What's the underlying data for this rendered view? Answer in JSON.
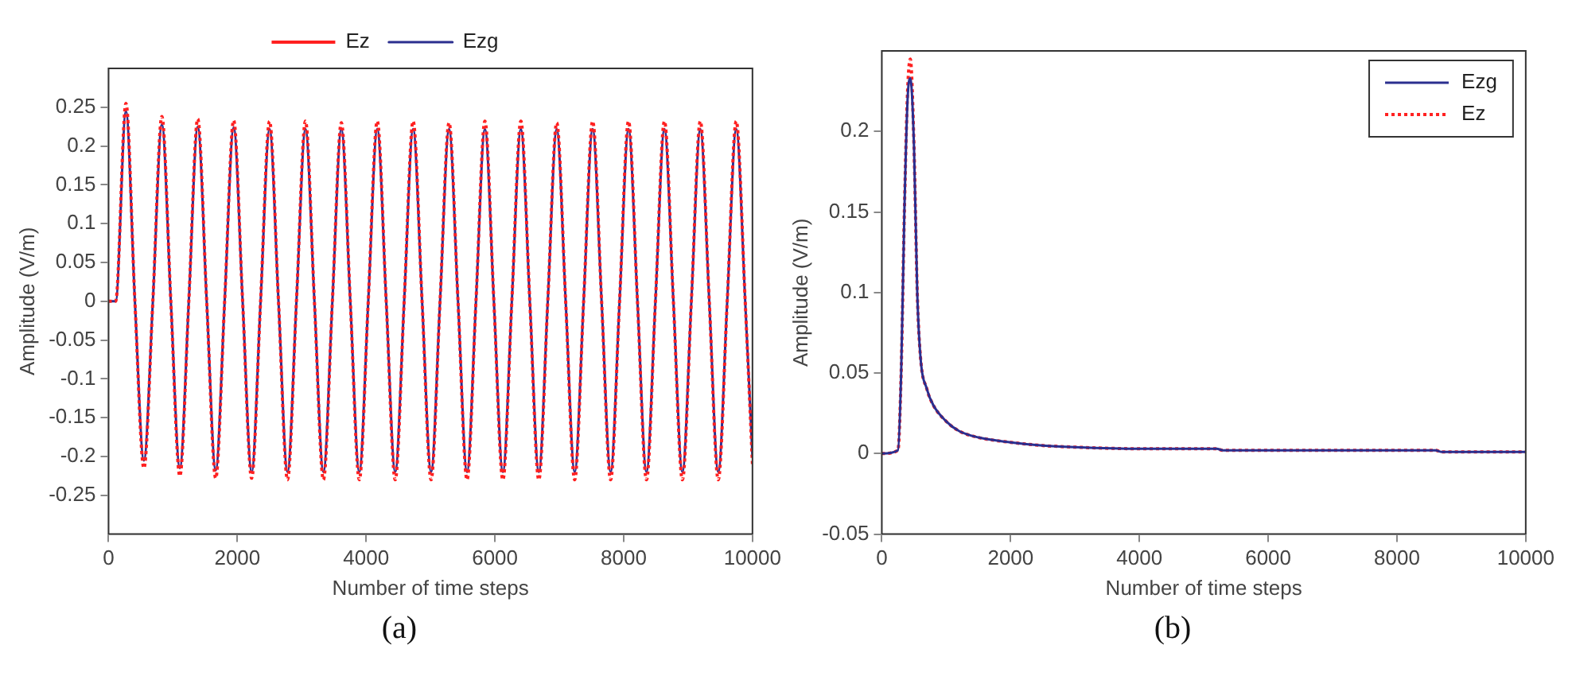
{
  "chart_data": [
    {
      "type": "line",
      "title": "(a)",
      "xlabel": "Number of time steps",
      "ylabel": "Amplitude (V/m)",
      "legend": "top",
      "marker": "none",
      "grid": false,
      "x": [
        0,
        110,
        270,
        409,
        549,
        688,
        828,
        967,
        1107,
        1246,
        1385,
        1524,
        1664,
        1803,
        1943,
        2082,
        2222,
        2361,
        2500,
        2639,
        2779,
        2918,
        3058,
        3197,
        3337,
        3476,
        3615,
        3754,
        3894,
        4033,
        4173,
        4312,
        4452,
        4591,
        4730,
        4869,
        5009,
        5148,
        5288,
        5427,
        5567,
        5706,
        5845,
        5984,
        6124,
        6263,
        6403,
        6542,
        6682,
        6821,
        6960,
        7099,
        7239,
        7378,
        7518,
        7657,
        7797,
        7936,
        8075,
        8214,
        8354,
        8493,
        8633,
        8772,
        8912,
        9051,
        9190,
        9329,
        9469,
        9608,
        9748,
        9887,
        10000
      ],
      "xlim": [
        0,
        10000
      ],
      "xticks": [
        0,
        2000,
        4000,
        6000,
        8000,
        10000
      ],
      "ylim": [
        -0.3,
        0.3
      ],
      "yticks": [
        -0.25,
        -0.2,
        -0.15,
        -0.1,
        -0.05,
        0,
        0.05,
        0.1,
        0.15,
        0.2,
        0.25
      ],
      "series": [
        {
          "name": "Ez",
          "color": "#ff2020",
          "line_style": "dotted",
          "values": [
            0,
            0,
            0.255,
            0,
            -0.215,
            0,
            0.238,
            0,
            -0.225,
            0,
            0.235,
            0,
            -0.228,
            0,
            0.233,
            0,
            -0.228,
            0,
            0.232,
            0,
            -0.23,
            0,
            0.232,
            0,
            -0.23,
            0,
            0.23,
            0,
            -0.23,
            0,
            0.232,
            0,
            -0.23,
            0,
            0.232,
            0,
            -0.23,
            0,
            0.23,
            0,
            -0.23,
            0,
            0.232,
            0,
            -0.23,
            0,
            0.232,
            0,
            -0.23,
            0,
            0.23,
            0,
            -0.23,
            0,
            0.232,
            0,
            -0.23,
            0,
            0.232,
            0,
            -0.23,
            0,
            0.232,
            0,
            -0.23,
            0,
            0.232,
            0,
            -0.23,
            0,
            0.232,
            0,
            -0.21
          ]
        },
        {
          "name": "Ezg",
          "color": "#2b2f8f",
          "line_style": "solid",
          "values": [
            0,
            0,
            0.245,
            0,
            -0.205,
            0,
            0.228,
            0,
            -0.215,
            0,
            0.225,
            0,
            -0.218,
            0,
            0.224,
            0,
            -0.22,
            0,
            0.222,
            0,
            -0.22,
            0,
            0.222,
            0,
            -0.22,
            0,
            0.222,
            0,
            -0.22,
            0,
            0.222,
            0,
            -0.22,
            0,
            0.222,
            0,
            -0.22,
            0,
            0.222,
            0,
            -0.22,
            0,
            0.222,
            0,
            -0.22,
            0,
            0.222,
            0,
            -0.22,
            0,
            0.222,
            0,
            -0.22,
            0,
            0.222,
            0,
            -0.22,
            0,
            0.222,
            0,
            -0.22,
            0,
            0.222,
            0,
            -0.22,
            0,
            0.222,
            0,
            -0.22,
            0,
            0.222,
            0,
            -0.2
          ]
        }
      ]
    },
    {
      "type": "line",
      "title": "(b)",
      "xlabel": "Number of time steps",
      "ylabel": "Amplitude (V/m)",
      "legend": "top right",
      "marker": "none",
      "grid": false,
      "x": [
        0,
        250,
        300,
        350,
        400,
        442,
        500,
        550,
        600,
        700,
        800,
        1000,
        1200,
        1500,
        2000,
        2500,
        3000,
        4000,
        5200,
        5300,
        8600,
        8700,
        10000
      ],
      "xlim": [
        0,
        10000
      ],
      "xticks": [
        0,
        2000,
        4000,
        6000,
        8000,
        10000
      ],
      "ylim": [
        -0.05,
        0.25
      ],
      "yticks": [
        -0.05,
        0,
        0.05,
        0.1,
        0.15,
        0.2
      ],
      "series": [
        {
          "name": "Ezg",
          "color": "#2b2f8f",
          "line_style": "solid",
          "values": [
            0,
            0.002,
            0.05,
            0.15,
            0.22,
            0.233,
            0.19,
            0.1,
            0.06,
            0.04,
            0.03,
            0.02,
            0.014,
            0.01,
            0.007,
            0.005,
            0.004,
            0.003,
            0.003,
            0.002,
            0.002,
            0.001,
            0.001
          ]
        },
        {
          "name": "Ez",
          "color": "#ff2020",
          "line_style": "dotted",
          "values": [
            0,
            0.002,
            0.05,
            0.15,
            0.225,
            0.245,
            0.19,
            0.1,
            0.06,
            0.04,
            0.03,
            0.02,
            0.014,
            0.01,
            0.007,
            0.005,
            0.004,
            0.003,
            0.003,
            0.002,
            0.002,
            0.001,
            0.001
          ]
        }
      ]
    }
  ]
}
